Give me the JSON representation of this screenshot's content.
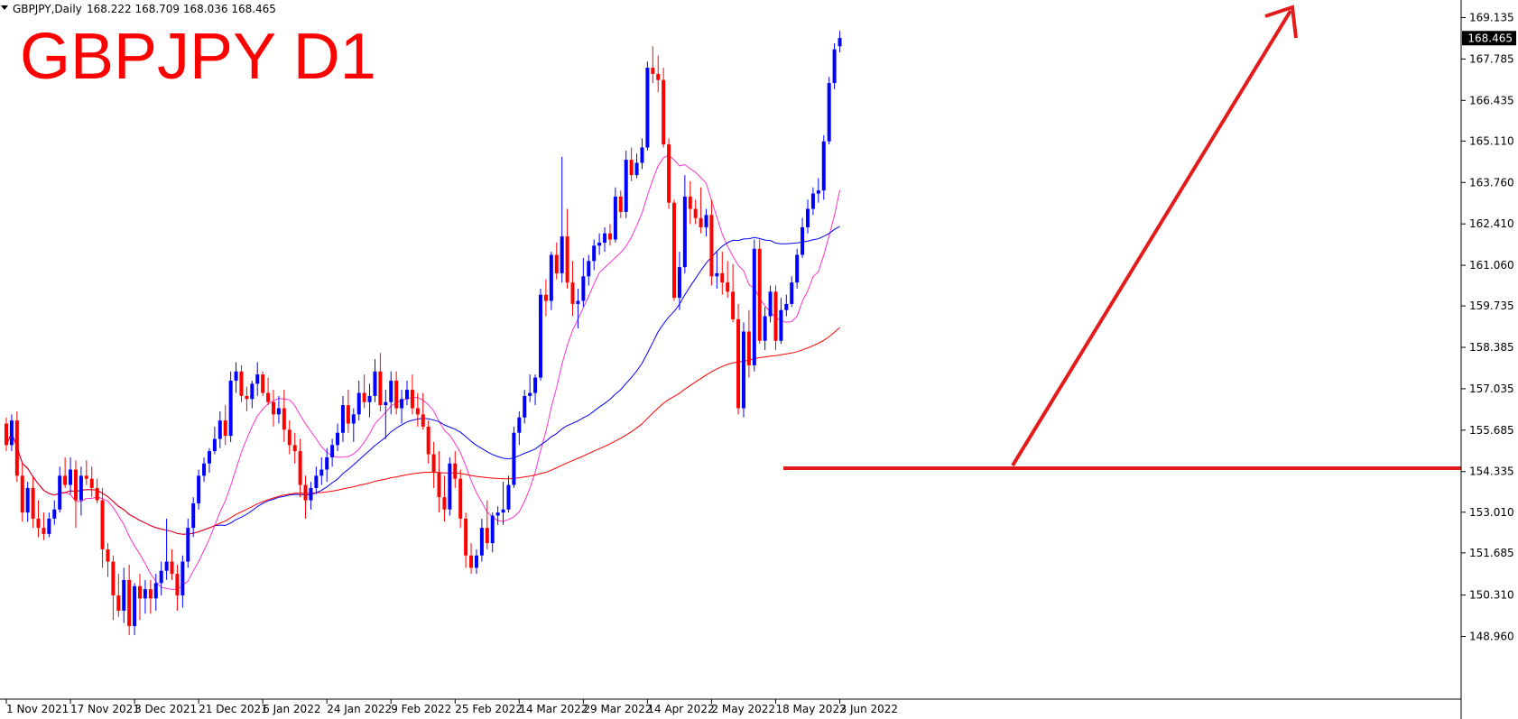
{
  "header": {
    "symbol_info": "GBPJPY,Daily",
    "ohlc": "168.222 168.709 168.036 168.465",
    "big_title": "GBPJPY D1"
  },
  "colors": {
    "bull": "#0000ff",
    "bear": "#ff0000",
    "ma_fast": "#ff33cc",
    "ma_mid": "#0000ff",
    "ma_slow": "#ff0000",
    "annotation": "#e31b1b"
  },
  "chart_data": {
    "type": "candlestick",
    "ylim": [
      148.3,
      169.6
    ],
    "yticks": [
      "169.135",
      "167.785",
      "166.435",
      "165.110",
      "163.760",
      "162.410",
      "161.060",
      "159.735",
      "158.385",
      "157.035",
      "155.685",
      "154.335",
      "153.010",
      "151.685",
      "150.310",
      "148.960"
    ],
    "xticks": [
      {
        "label": "1 Nov 2021",
        "i": 0
      },
      {
        "label": "17 Nov 2021",
        "i": 12
      },
      {
        "label": "3 Dec 2021",
        "i": 24
      },
      {
        "label": "21 Dec 2021",
        "i": 36
      },
      {
        "label": "6 Jan 2022",
        "i": 48
      },
      {
        "label": "24 Jan 2022",
        "i": 60
      },
      {
        "label": "9 Feb 2022",
        "i": 72
      },
      {
        "label": "25 Feb 2022",
        "i": 84
      },
      {
        "label": "14 Mar 2022",
        "i": 96
      },
      {
        "label": "29 Mar 2022",
        "i": 108
      },
      {
        "label": "14 Apr 2022",
        "i": 120
      },
      {
        "label": "2 May 2022",
        "i": 132
      },
      {
        "label": "18 May 2022",
        "i": 144
      },
      {
        "label": "3 Jun 2022",
        "i": 156
      }
    ],
    "current_price": "168.465",
    "candles": [
      [
        155.9,
        156.1,
        155.0,
        155.2
      ],
      [
        155.2,
        156.2,
        155.0,
        156.0
      ],
      [
        156.0,
        156.3,
        154.0,
        154.2
      ],
      [
        154.2,
        154.6,
        152.7,
        153.0
      ],
      [
        153.0,
        154.0,
        152.7,
        153.8
      ],
      [
        153.8,
        154.2,
        152.5,
        152.8
      ],
      [
        152.8,
        153.4,
        152.2,
        152.5
      ],
      [
        152.5,
        153.0,
        152.1,
        152.3
      ],
      [
        152.3,
        153.0,
        152.2,
        152.8
      ],
      [
        152.8,
        153.4,
        152.6,
        153.1
      ],
      [
        153.1,
        154.5,
        153.0,
        154.2
      ],
      [
        154.2,
        154.8,
        153.8,
        153.9
      ],
      [
        153.9,
        154.8,
        153.6,
        154.4
      ],
      [
        154.4,
        154.7,
        152.5,
        153.4
      ],
      [
        153.4,
        154.5,
        152.9,
        154.2
      ],
      [
        154.2,
        154.7,
        153.9,
        154.1
      ],
      [
        154.1,
        154.5,
        153.5,
        153.8
      ],
      [
        153.8,
        154.1,
        153.3,
        153.4
      ],
      [
        153.4,
        153.8,
        151.2,
        151.8
      ],
      [
        151.8,
        152.0,
        150.9,
        151.4
      ],
      [
        151.4,
        151.6,
        149.5,
        150.3
      ],
      [
        150.3,
        151.0,
        149.6,
        149.8
      ],
      [
        149.8,
        151.2,
        149.4,
        150.8
      ],
      [
        150.8,
        151.3,
        149.0,
        149.3
      ],
      [
        149.3,
        150.7,
        149.0,
        150.6
      ],
      [
        150.6,
        151.0,
        149.5,
        150.2
      ],
      [
        150.2,
        150.8,
        149.7,
        150.5
      ],
      [
        150.5,
        150.8,
        149.7,
        150.2
      ],
      [
        150.2,
        151.0,
        149.8,
        150.7
      ],
      [
        150.7,
        151.4,
        150.3,
        151.1
      ],
      [
        151.1,
        152.8,
        150.8,
        151.4
      ],
      [
        151.4,
        151.8,
        150.8,
        151.0
      ],
      [
        151.0,
        151.3,
        149.8,
        150.3
      ],
      [
        150.3,
        151.6,
        149.9,
        151.4
      ],
      [
        151.4,
        152.8,
        151.2,
        152.5
      ],
      [
        152.5,
        153.5,
        152.2,
        153.3
      ],
      [
        153.3,
        154.4,
        153.1,
        154.2
      ],
      [
        154.2,
        154.8,
        154.0,
        154.6
      ],
      [
        154.6,
        155.1,
        154.3,
        155.0
      ],
      [
        155.0,
        155.8,
        154.9,
        155.4
      ],
      [
        155.4,
        156.3,
        155.1,
        156.0
      ],
      [
        156.0,
        156.5,
        155.2,
        155.5
      ],
      [
        155.5,
        157.6,
        155.3,
        157.3
      ],
      [
        157.3,
        157.9,
        156.9,
        157.6
      ],
      [
        157.6,
        157.8,
        156.6,
        156.8
      ],
      [
        156.8,
        157.1,
        156.3,
        156.7
      ],
      [
        156.7,
        157.3,
        156.4,
        157.2
      ],
      [
        157.2,
        157.9,
        156.8,
        157.5
      ],
      [
        157.5,
        157.6,
        156.8,
        156.9
      ],
      [
        156.9,
        157.4,
        156.5,
        156.6
      ],
      [
        156.6,
        157.0,
        155.8,
        156.2
      ],
      [
        156.2,
        156.8,
        155.9,
        156.4
      ],
      [
        156.4,
        157.0,
        155.3,
        155.7
      ],
      [
        155.7,
        156.0,
        154.9,
        155.2
      ],
      [
        155.2,
        155.6,
        154.6,
        155.0
      ],
      [
        155.0,
        155.4,
        153.5,
        153.9
      ],
      [
        153.9,
        154.2,
        152.8,
        153.4
      ],
      [
        153.4,
        154.0,
        153.1,
        153.8
      ],
      [
        153.8,
        154.5,
        153.6,
        154.2
      ],
      [
        154.2,
        154.8,
        153.9,
        154.4
      ],
      [
        154.4,
        155.1,
        154.0,
        154.8
      ],
      [
        154.8,
        155.4,
        154.5,
        155.2
      ],
      [
        155.2,
        155.9,
        155.0,
        155.6
      ],
      [
        155.6,
        156.8,
        155.3,
        156.5
      ],
      [
        156.5,
        157.0,
        155.6,
        155.9
      ],
      [
        155.9,
        156.4,
        155.3,
        156.2
      ],
      [
        156.2,
        157.3,
        156.0,
        156.9
      ],
      [
        156.9,
        157.5,
        156.4,
        156.6
      ],
      [
        156.6,
        157.2,
        156.1,
        156.8
      ],
      [
        156.8,
        158.0,
        156.6,
        157.6
      ],
      [
        157.6,
        158.2,
        156.3,
        156.5
      ],
      [
        156.5,
        157.0,
        155.4,
        156.6
      ],
      [
        156.6,
        157.6,
        156.2,
        157.3
      ],
      [
        157.3,
        157.6,
        156.2,
        156.4
      ],
      [
        156.4,
        157.0,
        155.9,
        156.7
      ],
      [
        156.7,
        157.3,
        156.5,
        157.0
      ],
      [
        157.0,
        157.5,
        156.2,
        156.4
      ],
      [
        156.4,
        156.9,
        155.8,
        156.2
      ],
      [
        156.2,
        156.9,
        155.7,
        155.8
      ],
      [
        155.8,
        156.0,
        154.6,
        154.9
      ],
      [
        154.9,
        155.3,
        153.8,
        154.3
      ],
      [
        154.3,
        155.0,
        153.0,
        153.5
      ],
      [
        153.5,
        154.2,
        152.7,
        153.1
      ],
      [
        153.1,
        154.8,
        152.9,
        154.6
      ],
      [
        154.6,
        155.0,
        153.8,
        154.1
      ],
      [
        154.1,
        154.4,
        152.5,
        152.8
      ],
      [
        152.8,
        153.0,
        151.2,
        151.6
      ],
      [
        151.6,
        152.0,
        151.0,
        151.2
      ],
      [
        151.2,
        151.8,
        151.0,
        151.6
      ],
      [
        151.6,
        152.8,
        151.4,
        152.5
      ],
      [
        152.5,
        153.4,
        151.8,
        152.0
      ],
      [
        152.0,
        153.0,
        151.7,
        152.9
      ],
      [
        152.9,
        153.2,
        152.6,
        153.0
      ],
      [
        153.0,
        154.0,
        152.6,
        153.1
      ],
      [
        153.1,
        154.2,
        153.0,
        153.9
      ],
      [
        153.9,
        155.8,
        153.8,
        155.6
      ],
      [
        155.6,
        156.3,
        155.2,
        156.1
      ],
      [
        156.1,
        157.0,
        155.9,
        156.8
      ],
      [
        156.8,
        157.5,
        156.6,
        156.9
      ],
      [
        156.9,
        157.5,
        156.5,
        157.4
      ],
      [
        157.4,
        160.3,
        157.3,
        160.1
      ],
      [
        160.1,
        160.6,
        159.4,
        159.9
      ],
      [
        159.9,
        161.5,
        159.6,
        161.4
      ],
      [
        161.4,
        161.8,
        160.6,
        160.8
      ],
      [
        160.8,
        164.6,
        160.5,
        162.0
      ],
      [
        162.0,
        162.9,
        160.3,
        160.5
      ],
      [
        160.5,
        161.2,
        159.4,
        159.8
      ],
      [
        159.8,
        160.3,
        159.0,
        159.9
      ],
      [
        159.9,
        161.3,
        159.7,
        160.7
      ],
      [
        160.7,
        161.4,
        160.4,
        161.2
      ],
      [
        161.2,
        161.9,
        160.9,
        161.7
      ],
      [
        161.7,
        162.1,
        161.4,
        161.8
      ],
      [
        161.8,
        162.3,
        161.5,
        162.1
      ],
      [
        162.1,
        162.4,
        161.7,
        161.9
      ],
      [
        161.9,
        163.6,
        161.8,
        163.3
      ],
      [
        163.3,
        163.5,
        162.6,
        162.8
      ],
      [
        162.8,
        164.8,
        162.6,
        164.5
      ],
      [
        164.5,
        164.9,
        163.8,
        164.0
      ],
      [
        164.0,
        164.7,
        163.9,
        164.4
      ],
      [
        164.4,
        165.2,
        164.2,
        164.9
      ],
      [
        164.9,
        167.7,
        164.8,
        167.5
      ],
      [
        167.5,
        168.2,
        167.0,
        167.3
      ],
      [
        167.3,
        167.9,
        166.7,
        167.1
      ],
      [
        167.1,
        167.5,
        164.9,
        165.0
      ],
      [
        165.0,
        165.2,
        162.9,
        163.1
      ],
      [
        163.1,
        163.2,
        159.9,
        160.0
      ],
      [
        160.0,
        161.5,
        159.6,
        161.0
      ],
      [
        161.0,
        164.0,
        160.8,
        163.3
      ],
      [
        163.3,
        163.8,
        162.4,
        162.9
      ],
      [
        162.9,
        163.2,
        162.4,
        162.6
      ],
      [
        162.6,
        163.6,
        162.1,
        162.3
      ],
      [
        162.3,
        162.9,
        162.0,
        162.7
      ],
      [
        162.7,
        163.2,
        160.4,
        160.7
      ],
      [
        160.7,
        161.5,
        160.3,
        160.8
      ],
      [
        160.8,
        161.5,
        160.1,
        160.5
      ],
      [
        160.5,
        161.2,
        160.0,
        160.2
      ],
      [
        160.2,
        161.1,
        159.2,
        159.3
      ],
      [
        159.3,
        159.8,
        156.2,
        156.4
      ],
      [
        156.4,
        159.2,
        156.1,
        158.9
      ],
      [
        158.9,
        159.6,
        157.4,
        157.8
      ],
      [
        157.8,
        161.9,
        157.6,
        161.6
      ],
      [
        161.6,
        161.9,
        158.5,
        158.6
      ],
      [
        158.6,
        159.7,
        158.3,
        159.4
      ],
      [
        159.4,
        160.4,
        159.2,
        160.2
      ],
      [
        160.2,
        160.4,
        158.3,
        158.6
      ],
      [
        158.6,
        160.0,
        158.5,
        159.6
      ],
      [
        159.6,
        160.1,
        159.4,
        159.8
      ],
      [
        159.8,
        160.7,
        159.7,
        160.5
      ],
      [
        160.5,
        161.6,
        160.3,
        161.4
      ],
      [
        161.4,
        162.6,
        161.3,
        162.3
      ],
      [
        162.3,
        163.2,
        162.1,
        162.9
      ],
      [
        162.9,
        163.6,
        162.7,
        163.4
      ],
      [
        163.4,
        163.9,
        163.1,
        163.5
      ],
      [
        163.5,
        165.3,
        163.2,
        165.1
      ],
      [
        165.1,
        167.2,
        165.0,
        167.0
      ],
      [
        167.0,
        168.3,
        166.8,
        168.1
      ],
      [
        168.2,
        168.7,
        168.0,
        168.47
      ]
    ]
  }
}
